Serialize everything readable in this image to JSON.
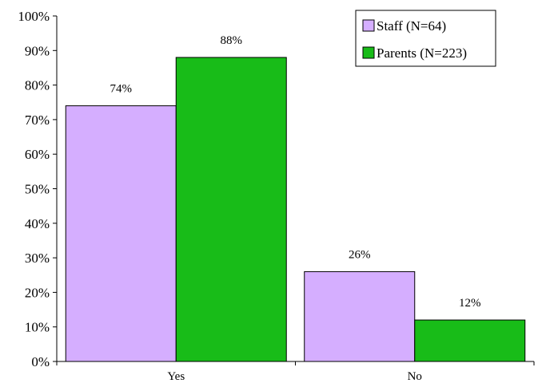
{
  "chart_data": {
    "type": "bar",
    "categories": [
      "Yes",
      "No"
    ],
    "series": [
      {
        "name": "Staff (N=64)",
        "values": [
          74,
          26
        ],
        "color": "#d5aeff"
      },
      {
        "name": "Parents (N=223)",
        "values": [
          88,
          12
        ],
        "color": "#18bc18"
      }
    ],
    "data_labels": [
      [
        "74%",
        "26%"
      ],
      [
        "88%",
        "12%"
      ]
    ],
    "yticks": [
      "0%",
      "10%",
      "20%",
      "30%",
      "40%",
      "50%",
      "60%",
      "70%",
      "80%",
      "90%",
      "100%"
    ],
    "ylim": [
      0,
      100
    ],
    "legend_position": "top-right",
    "grid": false
  }
}
